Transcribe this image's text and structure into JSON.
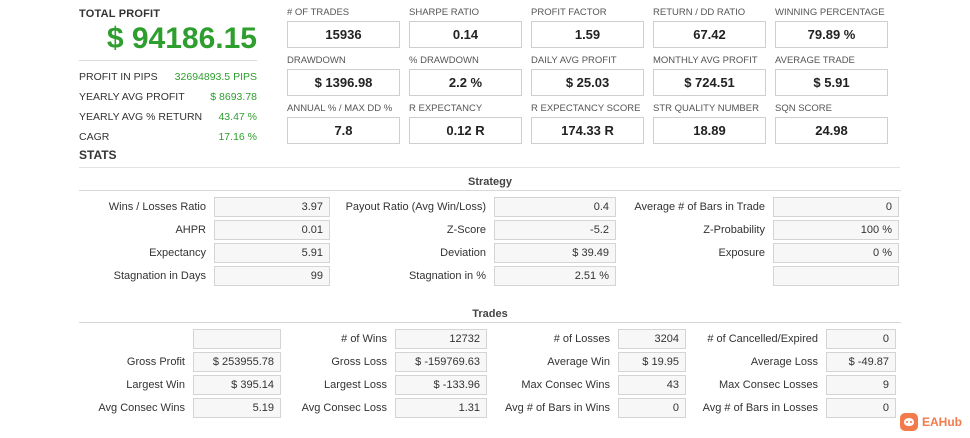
{
  "summary": {
    "total_label": "TOTAL PROFIT",
    "total_value": "$ 94186.15",
    "rows": [
      {
        "label": "PROFIT IN PIPS",
        "value": "32694893.5 PIPS"
      },
      {
        "label": "YEARLY AVG PROFIT",
        "value": "$ 8693.78"
      },
      {
        "label": "YEARLY AVG % RETURN",
        "value": "43.47 %"
      },
      {
        "label": "CAGR",
        "value": "17.16 %"
      }
    ]
  },
  "metrics": [
    {
      "label": "# OF TRADES",
      "value": "15936"
    },
    {
      "label": "SHARPE RATIO",
      "value": "0.14"
    },
    {
      "label": "PROFIT FACTOR",
      "value": "1.59"
    },
    {
      "label": "RETURN / DD RATIO",
      "value": "67.42"
    },
    {
      "label": "WINNING PERCENTAGE",
      "value": "79.89 %"
    },
    {
      "label": "DRAWDOWN",
      "value": "$ 1396.98"
    },
    {
      "label": "% DRAWDOWN",
      "value": "2.2 %"
    },
    {
      "label": "DAILY AVG PROFIT",
      "value": "$ 25.03"
    },
    {
      "label": "MONTHLY AVG PROFIT",
      "value": "$ 724.51"
    },
    {
      "label": "AVERAGE TRADE",
      "value": "$ 5.91"
    },
    {
      "label": "ANNUAL % / MAX DD %",
      "value": "7.8"
    },
    {
      "label": "R EXPECTANCY",
      "value": "0.12 R"
    },
    {
      "label": "R EXPECTANCY SCORE",
      "value": "174.33 R"
    },
    {
      "label": "STR QUALITY NUMBER",
      "value": "18.89"
    },
    {
      "label": "SQN SCORE",
      "value": "24.98"
    }
  ],
  "stats": {
    "heading": "STATS",
    "strategy_title": "Strategy",
    "strategy_rows": [
      [
        {
          "label": "Wins / Losses Ratio",
          "value": "3.97"
        },
        {
          "label": "Payout Ratio (Avg Win/Loss)",
          "value": "0.4"
        },
        {
          "label": "Average # of Bars in Trade",
          "value": "0"
        }
      ],
      [
        {
          "label": "AHPR",
          "value": "0.01"
        },
        {
          "label": "Z-Score",
          "value": "-5.2"
        },
        {
          "label": "Z-Probability",
          "value": "100 %"
        }
      ],
      [
        {
          "label": "Expectancy",
          "value": "5.91"
        },
        {
          "label": "Deviation",
          "value": "$ 39.49"
        },
        {
          "label": "Exposure",
          "value": "0 %"
        }
      ],
      [
        {
          "label": "Stagnation in Days",
          "value": "99"
        },
        {
          "label": "Stagnation in %",
          "value": "2.51 %"
        },
        {
          "label": "",
          "value": ""
        }
      ]
    ],
    "trades_title": "Trades",
    "trades_rows": [
      [
        {
          "label": "",
          "value": ""
        },
        {
          "label": "# of Wins",
          "value": "12732"
        },
        {
          "label": "# of Losses",
          "value": "3204"
        },
        {
          "label": "# of Cancelled/Expired",
          "value": "0"
        }
      ],
      [
        {
          "label": "Gross Profit",
          "value": "$ 253955.78"
        },
        {
          "label": "Gross Loss",
          "value": "$ -159769.63"
        },
        {
          "label": "Average Win",
          "value": "$ 19.95"
        },
        {
          "label": "Average Loss",
          "value": "$ -49.87"
        }
      ],
      [
        {
          "label": "Largest Win",
          "value": "$ 395.14"
        },
        {
          "label": "Largest Loss",
          "value": "$ -133.96"
        },
        {
          "label": "Max Consec Wins",
          "value": "43"
        },
        {
          "label": "Max Consec Losses",
          "value": "9"
        }
      ],
      [
        {
          "label": "Avg Consec Wins",
          "value": "5.19"
        },
        {
          "label": "Avg Consec Loss",
          "value": "1.31"
        },
        {
          "label": "Avg # of Bars in Wins",
          "value": "0"
        },
        {
          "label": "Avg # of Bars in Losses",
          "value": "0"
        }
      ]
    ]
  },
  "brand": {
    "name": "EAHub",
    "icon": "eahub-logo-icon",
    "color": "#f27a4b"
  },
  "colors": {
    "profit_green": "#2e9e2e"
  }
}
